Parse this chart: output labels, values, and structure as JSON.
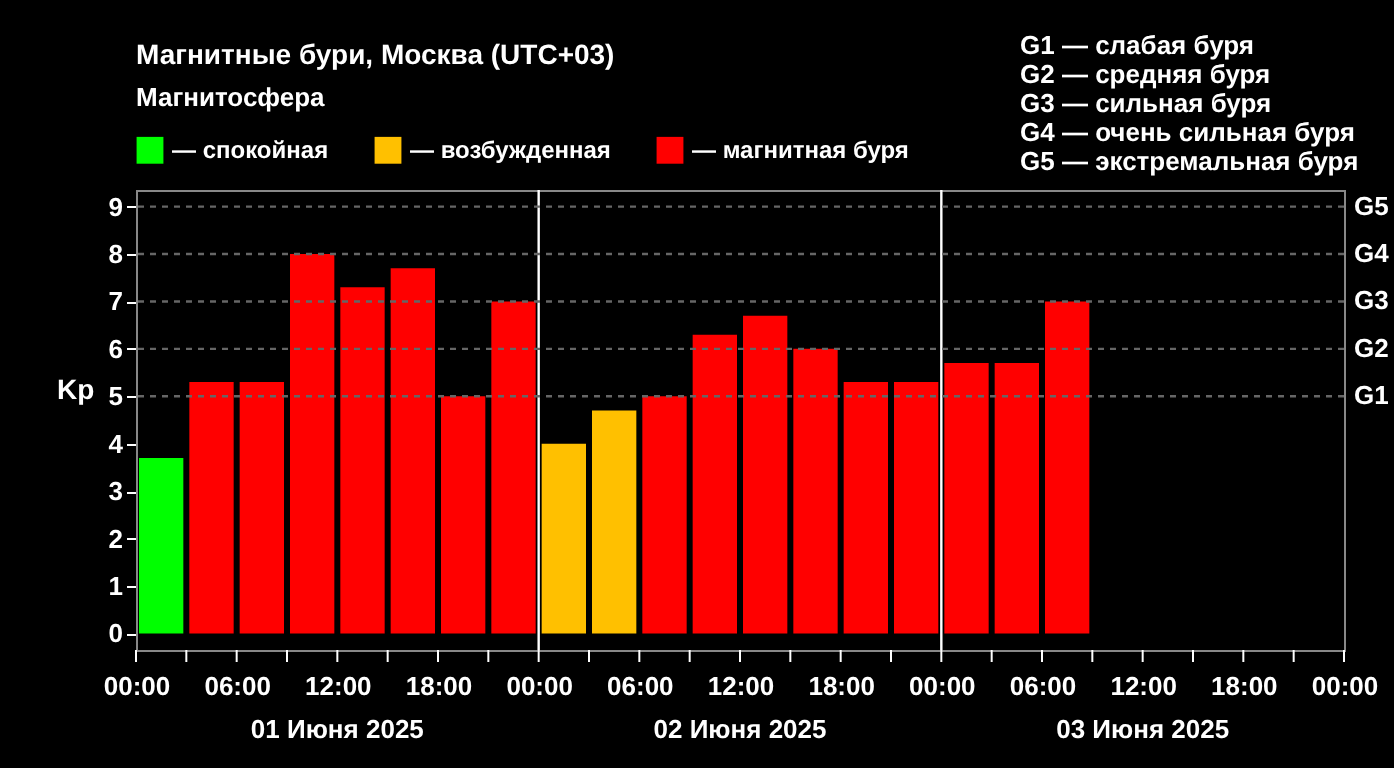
{
  "chart_data": {
    "type": "bar",
    "title": "Магнитные бури, Москва (UTC+03)",
    "ylabel": "Kp",
    "legend_title": "Магнитосфера",
    "legend": "top left",
    "x": [
      "2025-06-01T01:30",
      "2025-06-01T04:30",
      "2025-06-01T07:30",
      "2025-06-01T10:30",
      "2025-06-01T13:30",
      "2025-06-01T16:30",
      "2025-06-01T19:30",
      "2025-06-01T22:30",
      "2025-06-02T01:30",
      "2025-06-02T04:30",
      "2025-06-02T07:30",
      "2025-06-02T10:30",
      "2025-06-02T13:30",
      "2025-06-02T16:30",
      "2025-06-02T19:30",
      "2025-06-02T22:30",
      "2025-06-03T01:30",
      "2025-06-03T04:30",
      "2025-06-03T07:30"
    ],
    "series": [
      {
        "name": "— спокойная",
        "color": "#00ff00",
        "values": [
          3.7,
          null,
          null,
          null,
          null,
          null,
          null,
          null,
          null,
          null,
          null,
          null,
          null,
          null,
          null,
          null,
          null,
          null,
          null
        ]
      },
      {
        "name": "— возбужденная",
        "color": "#ffc000",
        "values": [
          null,
          null,
          null,
          null,
          null,
          null,
          null,
          null,
          4.0,
          4.7,
          null,
          null,
          null,
          null,
          null,
          null,
          null,
          null,
          null
        ]
      },
      {
        "name": "— магнитная буря",
        "color": "#ff0000",
        "values": [
          null,
          5.3,
          5.3,
          8.0,
          7.3,
          7.7,
          5.0,
          7.0,
          null,
          null,
          5.0,
          6.3,
          6.7,
          6.0,
          5.3,
          5.3,
          5.7,
          5.7,
          7.0
        ]
      }
    ],
    "xlim": [
      "2025-06-01T00:00",
      "2025-06-04T00:00"
    ],
    "xticks": [
      {
        "value": "2025-06-01T00:00",
        "label": "00:00"
      },
      {
        "value": "2025-06-01T03:00",
        "label": null
      },
      {
        "value": "2025-06-01T06:00",
        "label": "06:00"
      },
      {
        "value": "2025-06-01T09:00",
        "label": null
      },
      {
        "value": "2025-06-01T12:00",
        "label": "12:00"
      },
      {
        "value": "2025-06-01T15:00",
        "label": null
      },
      {
        "value": "2025-06-01T18:00",
        "label": "18:00"
      },
      {
        "value": "2025-06-01T21:00",
        "label": null
      },
      {
        "value": "2025-06-02T00:00",
        "label": "00:00"
      },
      {
        "value": "2025-06-02T03:00",
        "label": null
      },
      {
        "value": "2025-06-02T06:00",
        "label": "06:00"
      },
      {
        "value": "2025-06-02T09:00",
        "label": null
      },
      {
        "value": "2025-06-02T12:00",
        "label": "12:00"
      },
      {
        "value": "2025-06-02T15:00",
        "label": null
      },
      {
        "value": "2025-06-02T18:00",
        "label": "18:00"
      },
      {
        "value": "2025-06-02T21:00",
        "label": null
      },
      {
        "value": "2025-06-03T00:00",
        "label": "00:00"
      },
      {
        "value": "2025-06-03T03:00",
        "label": null
      },
      {
        "value": "2025-06-03T06:00",
        "label": "06:00"
      },
      {
        "value": "2025-06-03T09:00",
        "label": null
      },
      {
        "value": "2025-06-03T12:00",
        "label": "12:00"
      },
      {
        "value": "2025-06-03T15:00",
        "label": null
      },
      {
        "value": "2025-06-03T18:00",
        "label": "18:00"
      },
      {
        "value": "2025-06-03T21:00",
        "label": null
      },
      {
        "value": "2025-06-04T00:00",
        "label": "00:00"
      }
    ],
    "ylim": [
      -0.35,
      9.35
    ],
    "yticks": [
      0,
      1,
      2,
      3,
      4,
      5,
      6,
      7,
      8,
      9
    ],
    "ref_lines": [
      {
        "axis": "x",
        "value": "2025-06-02T00:00",
        "color": "#ffffff"
      },
      {
        "axis": "x",
        "value": "2025-06-03T00:00",
        "color": "#ffffff"
      },
      {
        "axis": "y",
        "value": 5,
        "label": "G1",
        "line_style": "dashed"
      },
      {
        "axis": "y",
        "value": 6,
        "label": "G2",
        "line_style": "dashed"
      },
      {
        "axis": "y",
        "value": 7,
        "label": "G3",
        "line_style": "dashed"
      },
      {
        "axis": "y",
        "value": 8,
        "label": "G4",
        "line_style": "dashed"
      },
      {
        "axis": "y",
        "value": 9,
        "label": "G5",
        "line_style": "dashed"
      }
    ],
    "annotations": [
      "G1 — слабая буря",
      "G2 — средняя буря",
      "G3 — сильная буря",
      "G4 — очень сильная буря",
      "G5 — экстремальная буря",
      "01 Июня 2025",
      "02 Июня 2025",
      "03 Июня 2025"
    ]
  }
}
